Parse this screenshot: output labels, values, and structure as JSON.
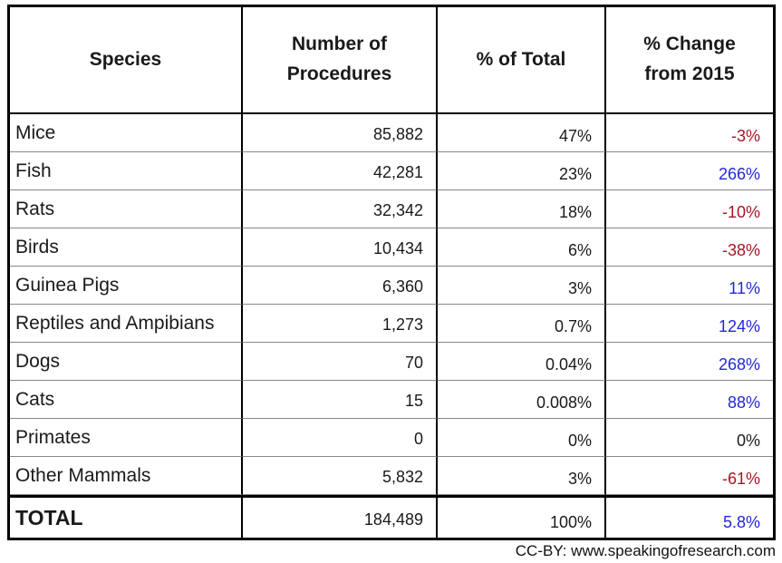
{
  "header": {
    "species": "Species",
    "procedures": "Number of Procedures",
    "pct_total": "% of Total",
    "pct_change": "% Change from 2015"
  },
  "rows": [
    {
      "species": "Mice",
      "procedures": "85,882",
      "pct_total": "47%",
      "pct_change": "-3%",
      "change_color": "red"
    },
    {
      "species": "Fish",
      "procedures": "42,281",
      "pct_total": "23%",
      "pct_change": "266%",
      "change_color": "blue"
    },
    {
      "species": "Rats",
      "procedures": "32,342",
      "pct_total": "18%",
      "pct_change": "-10%",
      "change_color": "red"
    },
    {
      "species": "Birds",
      "procedures": "10,434",
      "pct_total": "6%",
      "pct_change": "-38%",
      "change_color": "red"
    },
    {
      "species": "Guinea Pigs",
      "procedures": "6,360",
      "pct_total": "3%",
      "pct_change": "11%",
      "change_color": "blue"
    },
    {
      "species": "Reptiles and Ampibians",
      "procedures": "1,273",
      "pct_total": "0.7%",
      "pct_change": "124%",
      "change_color": "blue"
    },
    {
      "species": "Dogs",
      "procedures": "70",
      "pct_total": "0.04%",
      "pct_change": "268%",
      "change_color": "blue"
    },
    {
      "species": "Cats",
      "procedures": "15",
      "pct_total": "0.008%",
      "pct_change": "88%",
      "change_color": "blue"
    },
    {
      "species": "Primates",
      "procedures": "0",
      "pct_total": "0%",
      "pct_change": "0%",
      "change_color": "black"
    },
    {
      "species": "Other Mammals",
      "procedures": "5,832",
      "pct_total": "3%",
      "pct_change": "-61%",
      "change_color": "red"
    }
  ],
  "total_row": {
    "label": "TOTAL",
    "procedures": "184,489",
    "pct_total": "100%",
    "pct_change": "5.8%",
    "change_color": "blue"
  },
  "footer": {
    "credit": "CC-BY: www.speakingofresearch.com"
  },
  "colors": {
    "negative_change": "#a91523",
    "positive_change": "#2228d8",
    "neutral_change": "#1a1a1a",
    "border": "#000000",
    "row_divider": "#888888"
  },
  "chart_data": {
    "type": "table",
    "title": "",
    "columns": [
      "Species",
      "Number of Procedures",
      "% of Total",
      "% Change from 2015"
    ],
    "rows": [
      [
        "Mice",
        85882,
        "47%",
        "-3%"
      ],
      [
        "Fish",
        42281,
        "23%",
        "266%"
      ],
      [
        "Rats",
        32342,
        "18%",
        "-10%"
      ],
      [
        "Birds",
        10434,
        "6%",
        "-38%"
      ],
      [
        "Guinea Pigs",
        6360,
        "3%",
        "11%"
      ],
      [
        "Reptiles and Ampibians",
        1273,
        "0.7%",
        "124%"
      ],
      [
        "Dogs",
        70,
        "0.04%",
        "268%"
      ],
      [
        "Cats",
        15,
        "0.008%",
        "88%"
      ],
      [
        "Primates",
        0,
        "0%",
        "0%"
      ],
      [
        "Other Mammals",
        5832,
        "3%",
        "-61%"
      ]
    ],
    "total": [
      "TOTAL",
      184489,
      "100%",
      "5.8%"
    ],
    "annotations": [
      "CC-BY: www.speakingofresearch.com"
    ],
    "notes": "negative % changes shown in dark red, positive in blue"
  }
}
